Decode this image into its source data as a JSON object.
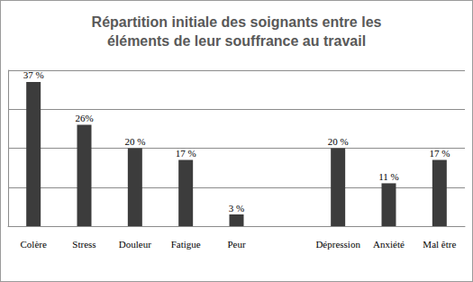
{
  "chart_data": {
    "type": "bar",
    "title": "Répartition initiale des soignants entre les\néléments de leur souffrance au travail",
    "categories": [
      "Colère",
      "Stress",
      "Douleur",
      "Fatigue",
      "Peur",
      null,
      "Dépression",
      "Anxiété",
      "Mal être"
    ],
    "values": [
      37,
      26,
      20,
      17,
      3,
      null,
      20,
      11,
      17
    ],
    "value_labels": [
      "37 %",
      "26%",
      "20 %",
      "17 %",
      "3 %",
      null,
      "20 %",
      "11 %",
      "17 %"
    ],
    "color": "#3c3c3c",
    "ylim": [
      0,
      40
    ],
    "yticks": [
      0,
      10,
      20,
      30,
      40
    ],
    "grid": true,
    "data_labels": true,
    "tick_labels": "x"
  }
}
